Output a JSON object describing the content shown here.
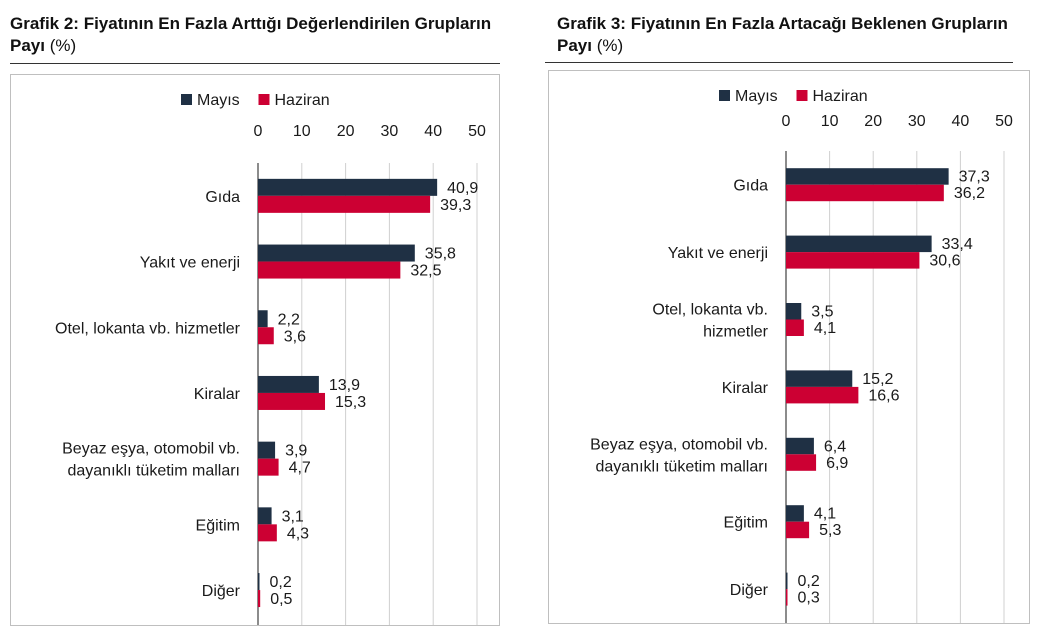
{
  "colors": {
    "may": "#1f3044",
    "june": "#cc0033"
  },
  "charts": [
    {
      "title_main": "Grafik 2: Fiyatının En Fazla Arttığı Değerlendirilen Grupların Payı",
      "title_unit": "(%)"
    },
    {
      "title_main": "Grafik 3: Fiyatının En Fazla Artacağı Beklenen Grupların Payı",
      "title_unit": "(%)"
    }
  ],
  "chart_data": [
    {
      "type": "bar",
      "orientation": "horizontal",
      "title": "Grafik 2: Fiyatının En Fazla Arttığı Değerlendirilen Grupların Payı (%)",
      "categories": [
        [
          "Gıda"
        ],
        [
          "Yakıt ve enerji"
        ],
        [
          "Otel, lokanta vb. hizmetler"
        ],
        [
          "Kiralar"
        ],
        [
          "Beyaz eşya, otomobil vb.",
          "dayanıklı tüketim malları"
        ],
        [
          "Eğitim"
        ],
        [
          "Diğer"
        ]
      ],
      "series": [
        {
          "name": "Mayıs",
          "values": [
            40.9,
            35.8,
            2.2,
            13.9,
            3.9,
            3.1,
            0.2
          ],
          "labels": [
            "40,9",
            "35,8",
            "2,2",
            "13,9",
            "3,9",
            "3,1",
            "0,2"
          ]
        },
        {
          "name": "Haziran",
          "values": [
            39.3,
            32.5,
            3.6,
            15.3,
            4.7,
            4.3,
            0.5
          ],
          "labels": [
            "39,3",
            "32,5",
            "3,6",
            "15,3",
            "4,7",
            "4,3",
            "0,5"
          ]
        }
      ],
      "xlim": [
        0,
        50
      ],
      "ticks": [
        0,
        10,
        20,
        30,
        40,
        50
      ],
      "grid": true,
      "legend": "top"
    },
    {
      "type": "bar",
      "orientation": "horizontal",
      "title": "Grafik 3: Fiyatının En Fazla Artacağı Beklenen Grupların Payı (%)",
      "categories": [
        [
          "Gıda"
        ],
        [
          "Yakıt ve enerji"
        ],
        [
          "Otel, lokanta vb.",
          "hizmetler"
        ],
        [
          "Kiralar"
        ],
        [
          "Beyaz eşya, otomobil vb.",
          "dayanıklı tüketim malları"
        ],
        [
          "Eğitim"
        ],
        [
          "Diğer"
        ]
      ],
      "series": [
        {
          "name": "Mayıs",
          "values": [
            37.3,
            33.4,
            3.5,
            15.2,
            6.4,
            4.1,
            0.2
          ],
          "labels": [
            "37,3",
            "33,4",
            "3,5",
            "15,2",
            "6,4",
            "4,1",
            "0,2"
          ]
        },
        {
          "name": "Haziran",
          "values": [
            36.2,
            30.6,
            4.1,
            16.6,
            6.9,
            5.3,
            0.3
          ],
          "labels": [
            "36,2",
            "30,6",
            "4,1",
            "16,6",
            "6,9",
            "5,3",
            "0,3"
          ]
        }
      ],
      "xlim": [
        0,
        50
      ],
      "ticks": [
        0,
        10,
        20,
        30,
        40,
        50
      ],
      "grid": true,
      "legend": "top"
    }
  ]
}
